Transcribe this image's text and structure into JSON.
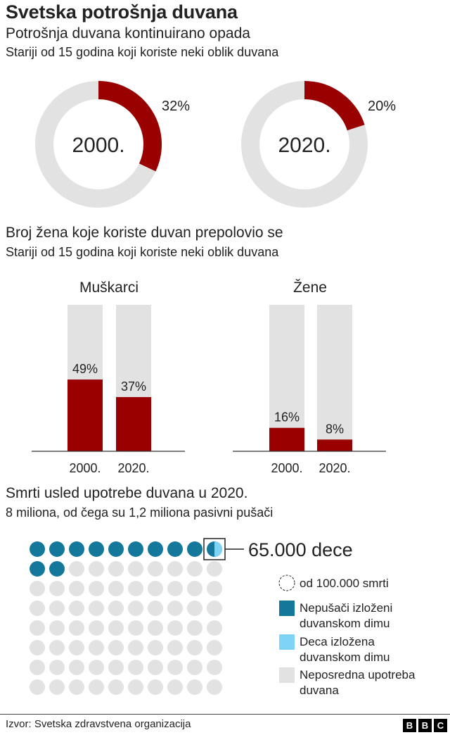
{
  "title": "Svetska potrošnja duvana",
  "section1": {
    "subtitle": "Potrošnja duvana kontinuirano opada",
    "note": "Stariji od 15 godina koji koriste neki oblik duvana"
  },
  "section2": {
    "subtitle": "Broj žena koje koriste duvan prepolovio se",
    "note": "Stariji od 15 godina koji koriste neki oblik duvana"
  },
  "section3": {
    "subtitle": "Smrti usled upotrebe duvana u 2020.",
    "note": "8 miliona, od čega su 1,2 miliona pasivni pušači"
  },
  "colors": {
    "red": "#990000",
    "grey": "#e2e2e2",
    "teal": "#14789a",
    "light_blue": "#7fd3f4"
  },
  "chart_data": [
    {
      "type": "pie",
      "donuts": [
        {
          "center_label": "2000.",
          "value": 32,
          "value_label": "32%"
        },
        {
          "center_label": "2020.",
          "value": 20,
          "value_label": "20%"
        }
      ]
    },
    {
      "type": "bar",
      "panels": [
        {
          "name": "Muškarci",
          "categories": [
            "2000.",
            "2020."
          ],
          "values": [
            49,
            37
          ],
          "labels": [
            "49%",
            "37%"
          ]
        },
        {
          "name": "Žene",
          "categories": [
            "2000.",
            "2020."
          ],
          "values": [
            16,
            8
          ],
          "labels": [
            "16%",
            "8%"
          ]
        }
      ],
      "ylim": [
        0,
        100
      ]
    },
    {
      "type": "waffle",
      "total_dots": 80,
      "counts": {
        "secondhand_adults": 11,
        "secondhand_children_partial": 1,
        "direct_use": 68
      },
      "child_fraction": 0.65,
      "callout": "65.000 dece",
      "legend": [
        {
          "key": "unit",
          "label": "od 100.000 smrti"
        },
        {
          "key": "secondhand",
          "label": "Nepušači izloženi duvanskom dimu"
        },
        {
          "key": "children",
          "label": "Deca izložena duvanskom dimu"
        },
        {
          "key": "direct",
          "label": "Neposredna upotreba duvana"
        }
      ]
    }
  ],
  "source": "Izvor: Svetska zdravstvena organizacija",
  "brand": [
    "B",
    "B",
    "C"
  ]
}
